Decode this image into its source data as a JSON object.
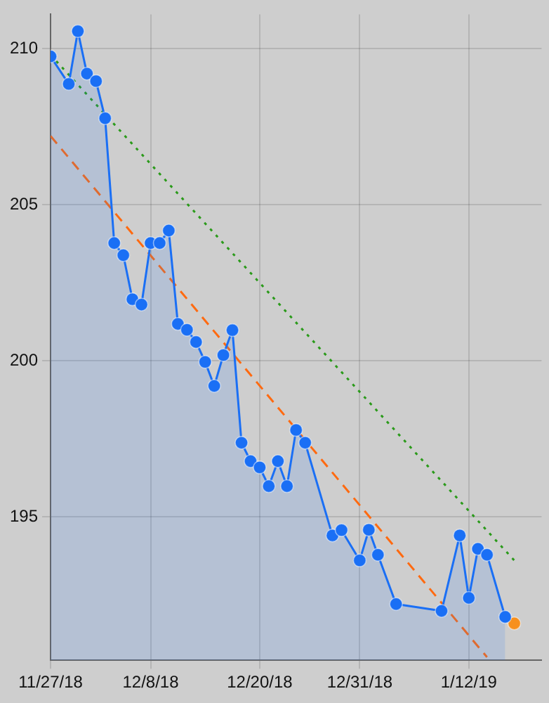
{
  "chart_data": {
    "type": "area",
    "grid": true,
    "marker": "circle",
    "xlim": [
      "2018-11-27",
      "2019-01-20"
    ],
    "xticks": [
      {
        "value": "2018-11-27",
        "label": "11/27/18"
      },
      {
        "value": "2018-12-08",
        "label": "12/8/18"
      },
      {
        "value": "2018-12-20",
        "label": "12/20/18"
      },
      {
        "value": "2018-12-31",
        "label": "12/31/18"
      },
      {
        "value": "2019-01-12",
        "label": "1/12/19"
      }
    ],
    "ylim": [
      190.4,
      211.1
    ],
    "yticks": [
      195,
      200,
      205,
      210
    ],
    "series": [
      {
        "type": "area",
        "color": "#1a6ff5",
        "x": [
          "2018-11-27",
          "2018-11-29",
          "2018-11-30",
          "2018-12-01",
          "2018-12-02",
          "2018-12-03",
          "2018-12-04",
          "2018-12-05",
          "2018-12-06",
          "2018-12-07",
          "2018-12-08",
          "2018-12-09",
          "2018-12-10",
          "2018-12-11",
          "2018-12-12",
          "2018-12-13",
          "2018-12-14",
          "2018-12-15",
          "2018-12-16",
          "2018-12-17",
          "2018-12-18",
          "2018-12-19",
          "2018-12-20",
          "2018-12-21",
          "2018-12-22",
          "2018-12-23",
          "2018-12-24",
          "2018-12-25",
          "2018-12-28",
          "2018-12-29",
          "2018-12-31",
          "2019-01-01",
          "2019-01-02",
          "2019-01-04",
          "2019-01-09",
          "2019-01-11",
          "2019-01-12",
          "2019-01-13",
          "2019-01-14",
          "2019-01-16"
        ],
        "values": [
          209.75,
          208.87,
          210.56,
          209.2,
          208.96,
          207.77,
          203.77,
          203.38,
          201.97,
          201.8,
          203.77,
          203.77,
          204.17,
          201.18,
          200.99,
          200.6,
          199.96,
          199.19,
          200.18,
          200.98,
          197.37,
          196.78,
          196.58,
          195.98,
          196.78,
          195.98,
          197.78,
          197.37,
          194.4,
          194.57,
          193.6,
          194.58,
          193.78,
          192.2,
          191.98,
          194.4,
          192.4,
          193.97,
          193.78,
          191.79
        ]
      },
      {
        "type": "scatter",
        "color": "#f7901e",
        "x": [
          "2019-01-17"
        ],
        "values": [
          191.58
        ]
      },
      {
        "type": "line",
        "color": "#2a9a1a",
        "marker": "none",
        "line_style": "dotted",
        "x": [
          "2018-11-27",
          "2019-01-17"
        ],
        "values": [
          209.8,
          193.6
        ]
      },
      {
        "type": "line",
        "color": "#ff6a10",
        "marker": "none",
        "line_style": "dashed",
        "x": [
          "2018-11-27",
          "2019-01-14"
        ],
        "values": [
          207.2,
          190.5
        ]
      }
    ]
  }
}
